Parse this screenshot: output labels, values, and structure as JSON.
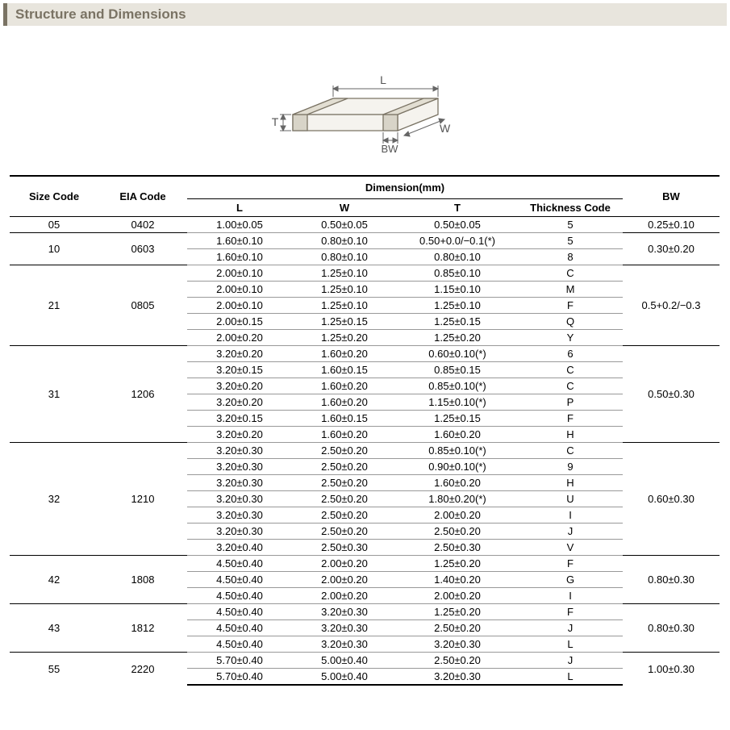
{
  "header": {
    "title": "Structure and Dimensions"
  },
  "diagram": {
    "labels": {
      "L": "L",
      "W": "W",
      "T": "T",
      "BW": "BW"
    },
    "stroke_color": "#7a7364",
    "fill_color": "#f5f3ee",
    "font_size": 14
  },
  "table": {
    "top_header": "Dimension(mm)",
    "columns": {
      "size": "Size Code",
      "eia": "EIA Code",
      "L": "L",
      "W": "W",
      "T": "T",
      "tc": "Thickness  Code",
      "bw": "BW"
    },
    "groups": [
      {
        "size": "05",
        "eia": "0402",
        "bw": "0.25±0.10",
        "rows": [
          {
            "L": "1.00±0.05",
            "W": "0.50±0.05",
            "T": "0.50±0.05",
            "tc": "5"
          }
        ]
      },
      {
        "size": "10",
        "eia": "0603",
        "bw": "0.30±0.20",
        "rows": [
          {
            "L": "1.60±0.10",
            "W": "0.80±0.10",
            "T": "0.50+0.0/−0.1(*)",
            "tc": "5"
          },
          {
            "L": "1.60±0.10",
            "W": "0.80±0.10",
            "T": "0.80±0.10",
            "tc": "8"
          }
        ]
      },
      {
        "size": "21",
        "eia": "0805",
        "bw": "0.5+0.2/−0.3",
        "rows": [
          {
            "L": "2.00±0.10",
            "W": "1.25±0.10",
            "T": "0.85±0.10",
            "tc": "C"
          },
          {
            "L": "2.00±0.10",
            "W": "1.25±0.10",
            "T": "1.15±0.10",
            "tc": "M"
          },
          {
            "L": "2.00±0.10",
            "W": "1.25±0.10",
            "T": "1.25±0.10",
            "tc": "F"
          },
          {
            "L": "2.00±0.15",
            "W": "1.25±0.15",
            "T": "1.25±0.15",
            "tc": "Q"
          },
          {
            "L": "2.00±0.20",
            "W": "1.25±0.20",
            "T": "1.25±0.20",
            "tc": "Y"
          }
        ]
      },
      {
        "size": "31",
        "eia": "1206",
        "bw": "0.50±0.30",
        "rows": [
          {
            "L": "3.20±0.20",
            "W": "1.60±0.20",
            "T": "0.60±0.10(*)",
            "tc": "6"
          },
          {
            "L": "3.20±0.15",
            "W": "1.60±0.15",
            "T": "0.85±0.15",
            "tc": "C"
          },
          {
            "L": "3.20±0.20",
            "W": "1.60±0.20",
            "T": "0.85±0.10(*)",
            "tc": "C"
          },
          {
            "L": "3.20±0.20",
            "W": "1.60±0.20",
            "T": "1.15±0.10(*)",
            "tc": "P"
          },
          {
            "L": "3.20±0.15",
            "W": "1.60±0.15",
            "T": "1.25±0.15",
            "tc": "F"
          },
          {
            "L": "3.20±0.20",
            "W": "1.60±0.20",
            "T": "1.60±0.20",
            "tc": "H"
          }
        ]
      },
      {
        "size": "32",
        "eia": "1210",
        "bw": "0.60±0.30",
        "rows": [
          {
            "L": "3.20±0.30",
            "W": "2.50±0.20",
            "T": "0.85±0.10(*)",
            "tc": "C"
          },
          {
            "L": "3.20±0.30",
            "W": "2.50±0.20",
            "T": "0.90±0.10(*)",
            "tc": "9"
          },
          {
            "L": "3.20±0.30",
            "W": "2.50±0.20",
            "T": "1.60±0.20",
            "tc": "H"
          },
          {
            "L": "3.20±0.30",
            "W": "2.50±0.20",
            "T": "1.80±0.20(*)",
            "tc": "U"
          },
          {
            "L": "3.20±0.30",
            "W": "2.50±0.20",
            "T": "2.00±0.20",
            "tc": "I"
          },
          {
            "L": "3.20±0.30",
            "W": "2.50±0.20",
            "T": "2.50±0.20",
            "tc": "J"
          },
          {
            "L": "3.20±0.40",
            "W": "2.50±0.30",
            "T": "2.50±0.30",
            "tc": "V"
          }
        ]
      },
      {
        "size": "42",
        "eia": "1808",
        "bw": "0.80±0.30",
        "rows": [
          {
            "L": "4.50±0.40",
            "W": "2.00±0.20",
            "T": "1.25±0.20",
            "tc": "F"
          },
          {
            "L": "4.50±0.40",
            "W": "2.00±0.20",
            "T": "1.40±0.20",
            "tc": "G"
          },
          {
            "L": "4.50±0.40",
            "W": "2.00±0.20",
            "T": "2.00±0.20",
            "tc": "I"
          }
        ]
      },
      {
        "size": "43",
        "eia": "1812",
        "bw": "0.80±0.30",
        "rows": [
          {
            "L": "4.50±0.40",
            "W": "3.20±0.30",
            "T": "1.25±0.20",
            "tc": "F"
          },
          {
            "L": "4.50±0.40",
            "W": "3.20±0.30",
            "T": "2.50±0.20",
            "tc": "J"
          },
          {
            "L": "4.50±0.40",
            "W": "3.20±0.30",
            "T": "3.20±0.30",
            "tc": "L"
          }
        ]
      },
      {
        "size": "55",
        "eia": "2220",
        "bw": "1.00±0.30",
        "rows": [
          {
            "L": "5.70±0.40",
            "W": "5.00±0.40",
            "T": "2.50±0.20",
            "tc": "J"
          },
          {
            "L": "5.70±0.40",
            "W": "5.00±0.40",
            "T": "3.20±0.30",
            "tc": "L"
          }
        ]
      }
    ]
  }
}
